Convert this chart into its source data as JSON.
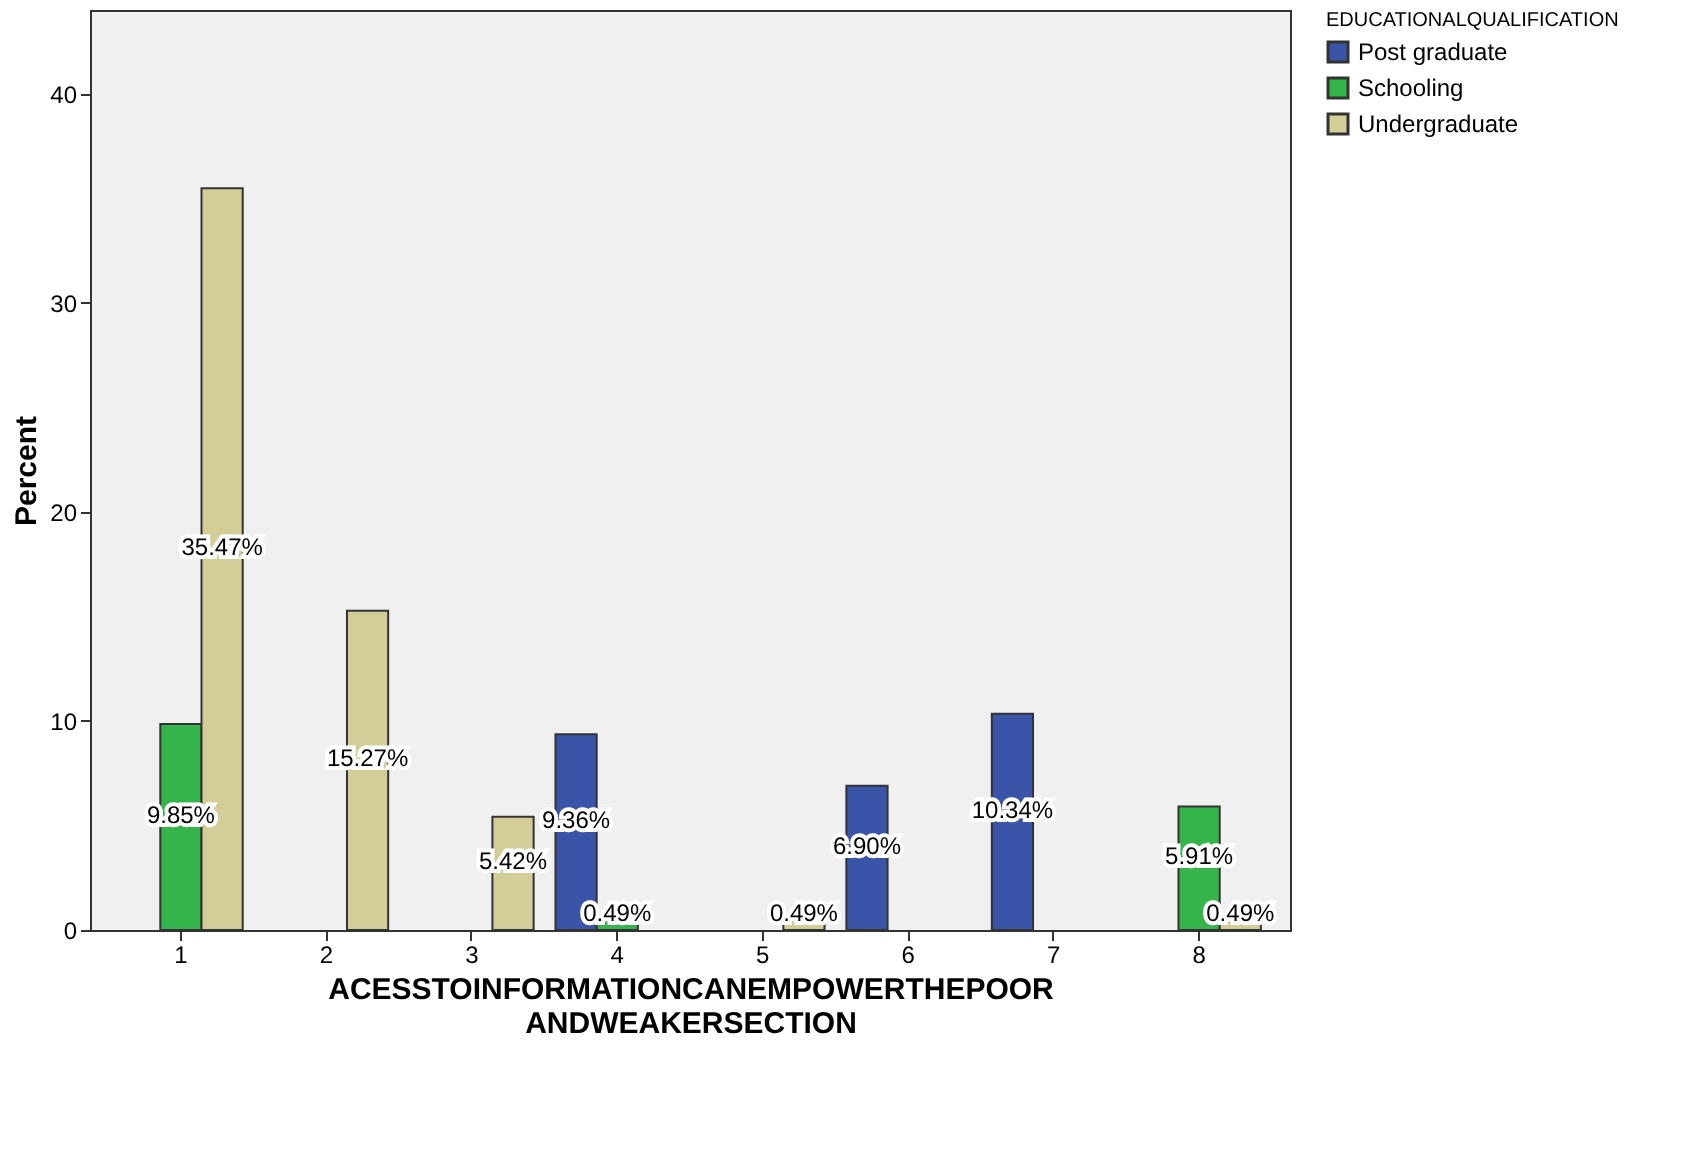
{
  "chart_data": {
    "type": "bar",
    "xlabel": "ACESSTOINFORMATIONCANEMPOWERTHEPOOR\nANDWEAKERSECTION",
    "ylabel": "Percent",
    "legend_title": "EDUCATIONALQUALIFICATION",
    "categories": [
      "1",
      "2",
      "3",
      "4",
      "5",
      "6",
      "7",
      "8"
    ],
    "series": [
      {
        "name": "Post graduate",
        "color": "#3a54a8",
        "values": [
          null,
          null,
          null,
          9.36,
          null,
          6.9,
          10.34,
          null
        ],
        "value_labels": [
          null,
          null,
          null,
          "9.36%",
          null,
          "6.90%",
          "10.34%",
          null
        ]
      },
      {
        "name": "Schooling",
        "color": "#34b44a",
        "values": [
          9.85,
          null,
          null,
          0.49,
          null,
          null,
          null,
          5.91
        ],
        "value_labels": [
          "9.85%",
          null,
          null,
          "0.49%",
          null,
          null,
          null,
          "5.91%"
        ]
      },
      {
        "name": "Undergraduate",
        "color": "#d3ce97",
        "values": [
          35.47,
          15.27,
          5.42,
          null,
          0.49,
          null,
          null,
          0.49
        ],
        "value_labels": [
          "35.47%",
          "15.27%",
          "5.42%",
          null,
          "0.49%",
          null,
          null,
          "0.49%"
        ]
      }
    ],
    "ylim": [
      0,
      44
    ],
    "yticks": [
      0,
      10,
      20,
      30,
      40
    ],
    "grid": false,
    "legend": "top right"
  }
}
